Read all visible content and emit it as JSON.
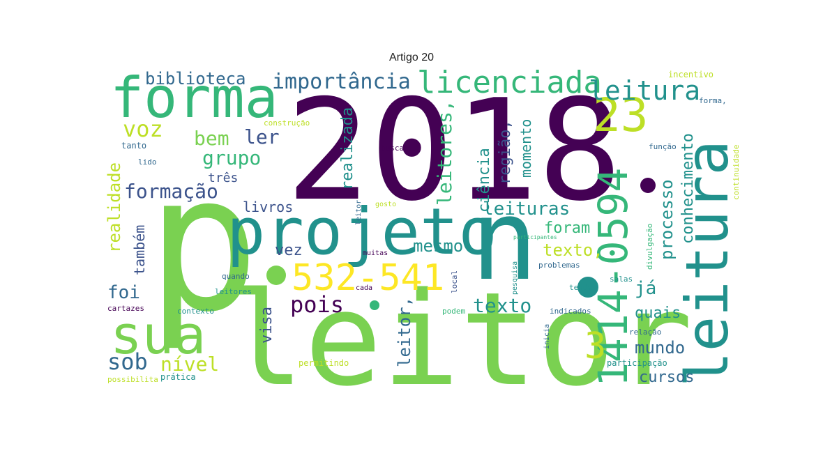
{
  "title": "Artigo 20",
  "colors": {
    "purple": "#440154",
    "darkblue": "#3b528b",
    "blue": "#31688e",
    "teal": "#21918c",
    "green": "#35b779",
    "lime": "#7ad151",
    "yellow": "#bddf26",
    "brightyellow": "#fde725"
  },
  "words": [
    "2018",
    "p",
    "leitor",
    "projeto",
    "n",
    "leitura",
    "forma",
    "sua",
    "1414-0594",
    "532-541",
    "23",
    "licenciada",
    "leitura",
    "importância",
    "biblioteca",
    "voz",
    "bem",
    "ler",
    "grupo",
    "formação",
    "três",
    "realidade",
    "livros",
    "também",
    "realizada",
    "leitores,",
    "ciência",
    "região,",
    "momento",
    "conhecimento",
    "processo",
    "leituras",
    "foram",
    "mesmo",
    "texto,",
    "vez",
    "foi",
    "pois",
    "texto",
    "já",
    "quais",
    "visa",
    "leitor,",
    "3",
    "sob",
    "nível",
    "mundo",
    "cursos",
    "incentivo",
    "forma,",
    "construção",
    "busca",
    "função",
    "continuidade",
    "tanto",
    "lido",
    "leitor",
    "gosto",
    "divulgação",
    "participantes",
    "muitas",
    "quando",
    "pesquisa",
    "problemas",
    "leitores",
    "cada",
    "local",
    "salas",
    "tende",
    "cartazes",
    "contexto",
    "podem",
    "indicados",
    "inicia",
    "relação",
    "permitindo",
    "participação",
    "possibilita",
    "prática"
  ]
}
